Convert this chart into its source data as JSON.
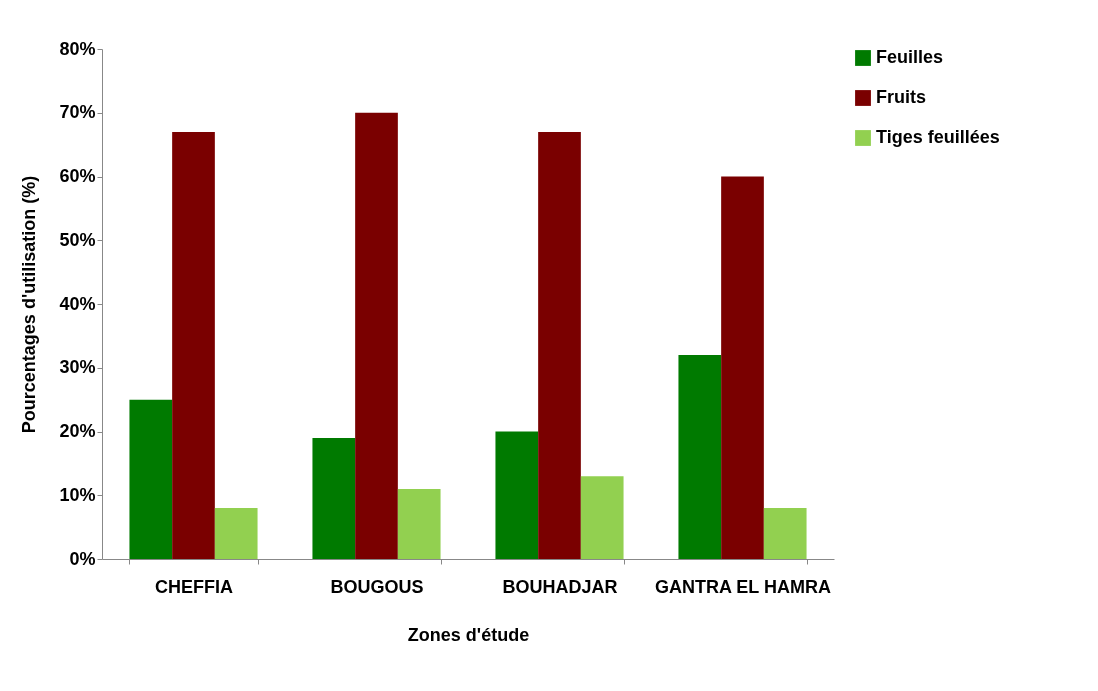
{
  "chart_data": {
    "type": "bar",
    "xlabel": "Zones d'étude",
    "ylabel": "Pourcentages d'utilisation (%)",
    "categories": [
      "CHEFFIA",
      "BOUGOUS",
      "BOUHADJAR",
      "GANTRA EL HAMRA"
    ],
    "series": [
      {
        "name": "Feuilles",
        "color": "#007a00",
        "values": [
          25,
          19,
          20,
          32
        ]
      },
      {
        "name": "Fruits",
        "color": "#7a0000",
        "values": [
          67,
          70,
          67,
          60
        ]
      },
      {
        "name": "Tiges feuillées",
        "color": "#92d050",
        "values": [
          8,
          11,
          13,
          8
        ]
      }
    ],
    "ylim": [
      0,
      80
    ],
    "yticks": [
      {
        "value": 0,
        "label": "0%"
      },
      {
        "value": 10,
        "label": "10%"
      },
      {
        "value": 20,
        "label": "20%"
      },
      {
        "value": 30,
        "label": "30%"
      },
      {
        "value": 40,
        "label": "40%"
      },
      {
        "value": 50,
        "label": "50%"
      },
      {
        "value": 60,
        "label": "60%"
      },
      {
        "value": 70,
        "label": "70%"
      },
      {
        "value": 80,
        "label": "80%"
      }
    ],
    "grid": false,
    "legend": "top right"
  }
}
